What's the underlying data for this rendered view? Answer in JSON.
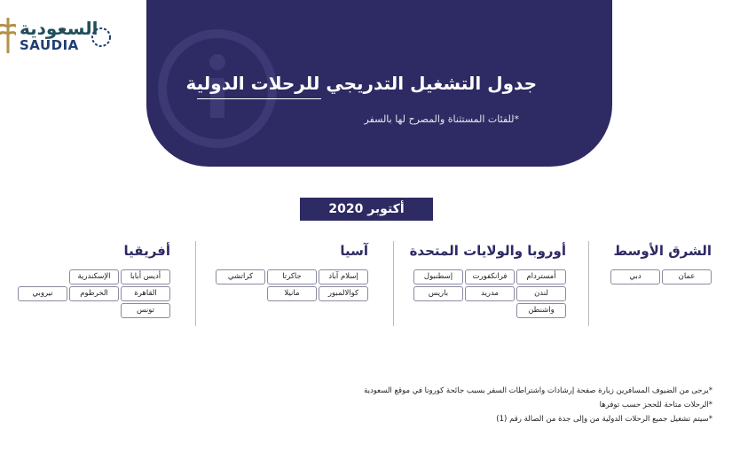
{
  "logo": {
    "arabic": "السعودية",
    "latin": "SAUDIA"
  },
  "header": {
    "title": "جدول التشغيل التدريجي للرحلات الدولية",
    "subtitle": "*للفئات المستثناة والمصرح لها بالسفر"
  },
  "month": "أكتوبر 2020",
  "regions": [
    {
      "name": "الشرق الأوسط",
      "rows": [
        [
          "عمان",
          "دبي"
        ]
      ]
    },
    {
      "name": "أوروبا والولايات المتحدة",
      "rows": [
        [
          "أمستردام",
          "فرانكفورت",
          "إسطنبول"
        ],
        [
          "لندن",
          "مدريد",
          "باريس"
        ],
        [
          "واشنطن"
        ]
      ]
    },
    {
      "name": "آسيا",
      "rows": [
        [
          "إسلام آباد",
          "جاكرتا",
          "كراتشي"
        ],
        [
          "كوالالمبور",
          "مانيلا"
        ]
      ]
    },
    {
      "name": "أفريقيا",
      "rows": [
        [
          "أديس أبابا",
          "الإسكندرية"
        ],
        [
          "القاهرة",
          "الخرطوم",
          "نيروبي"
        ],
        [
          "تونس"
        ]
      ]
    }
  ],
  "notes": [
    "*يرجى من الضيوف المسافرين زيارة صفحة إرشادات واشتراطات السفر بسبب جائحة كورونا في موقع السعودية",
    "*الرحلات متاحة للحجز حسب توفرها",
    "*سيتم تشغيل جميع الرحلات الدولية من وإلى جدة من الصالة رقم (1)"
  ]
}
